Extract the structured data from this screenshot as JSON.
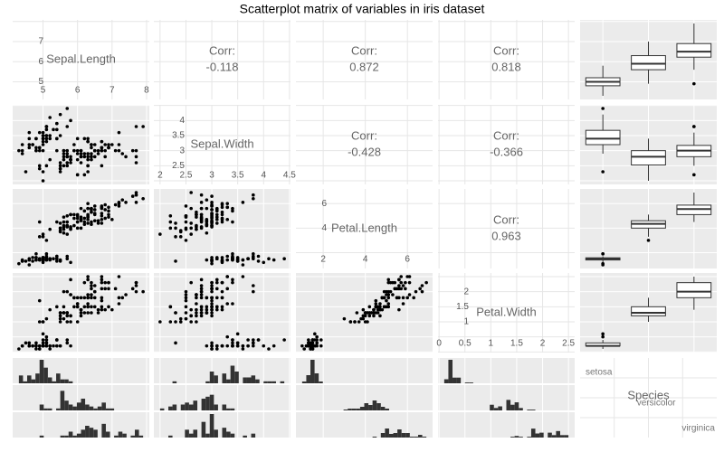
{
  "chart_data": {
    "type": "scatter-matrix",
    "title": "Scatterplot matrix of variables in iris dataset",
    "corr_label": "Corr:",
    "correlations": [
      {
        "pair": [
          0,
          1
        ],
        "value": -0.118
      },
      {
        "pair": [
          0,
          2
        ],
        "value": 0.872
      },
      {
        "pair": [
          0,
          3
        ],
        "value": 0.818
      },
      {
        "pair": [
          1,
          2
        ],
        "value": -0.428
      },
      {
        "pair": [
          1,
          3
        ],
        "value": -0.366
      },
      {
        "pair": [
          2,
          3
        ],
        "value": 0.963
      }
    ],
    "species": {
      "name": "Species",
      "levels": [
        "setosa",
        "versicolor",
        "virginica"
      ]
    },
    "point_color": "#000000",
    "bar_color": "#333333",
    "variables": [
      {
        "name": "Sepal.Length",
        "lim": [
          4.12,
          8.08
        ],
        "ticks": [
          5,
          6,
          7,
          8
        ],
        "series": [
          {
            "values": [
              5.1,
              4.9,
              4.7,
              4.6,
              5.0,
              5.4,
              4.6,
              5.0,
              4.4,
              4.9,
              5.4,
              4.8,
              4.8,
              4.3,
              5.8,
              5.7,
              5.4,
              5.1,
              5.7,
              5.1,
              5.4,
              5.1,
              4.6,
              5.1,
              4.8,
              5.0,
              5.0,
              5.2,
              5.2,
              4.7,
              4.8,
              5.4,
              5.2,
              5.5,
              4.9,
              5.0,
              5.5,
              4.9,
              4.4,
              5.1,
              5.0,
              4.5,
              4.4,
              5.0,
              5.1,
              4.8,
              5.1,
              4.6,
              5.3,
              5.0
            ],
            "box": [
              4.3,
              4.8,
              5.0,
              5.2,
              5.8
            ],
            "outliers": []
          },
          {
            "values": [
              7.0,
              6.4,
              6.9,
              5.5,
              6.5,
              5.7,
              6.3,
              4.9,
              6.6,
              5.2,
              5.0,
              5.9,
              6.0,
              6.1,
              5.6,
              6.7,
              5.6,
              5.8,
              6.2,
              5.6,
              5.9,
              6.1,
              6.3,
              6.1,
              6.4,
              6.6,
              6.8,
              6.7,
              6.0,
              5.7,
              5.5,
              5.5,
              5.8,
              6.0,
              5.4,
              6.0,
              6.7,
              6.3,
              5.6,
              5.5,
              5.5,
              6.1,
              5.8,
              5.0,
              5.6,
              5.7,
              5.7,
              6.2,
              5.1,
              5.7
            ],
            "box": [
              4.9,
              5.6,
              5.9,
              6.3,
              7.0
            ],
            "outliers": []
          },
          {
            "values": [
              6.3,
              5.8,
              7.1,
              6.3,
              6.5,
              7.6,
              4.9,
              7.3,
              6.7,
              7.2,
              6.5,
              6.4,
              6.8,
              5.7,
              5.8,
              6.4,
              6.5,
              7.7,
              7.7,
              6.0,
              6.9,
              5.6,
              7.7,
              6.3,
              6.7,
              7.2,
              6.2,
              6.1,
              6.4,
              7.2,
              7.4,
              7.9,
              6.4,
              6.3,
              6.1,
              7.7,
              6.3,
              6.4,
              6.0,
              6.9,
              6.7,
              6.9,
              5.8,
              6.8,
              6.7,
              6.7,
              6.3,
              6.5,
              6.2,
              5.9
            ],
            "box": [
              5.6,
              6.225,
              6.5,
              6.9,
              7.9
            ],
            "outliers": [
              4.9
            ]
          }
        ]
      },
      {
        "name": "Sepal.Width",
        "lim": [
          1.88,
          4.52
        ],
        "ticks": [
          2,
          2.5,
          3,
          3.5,
          4,
          4.5
        ],
        "series": [
          {
            "values": [
              3.5,
              3.0,
              3.2,
              3.1,
              3.6,
              3.9,
              3.4,
              3.4,
              2.9,
              3.1,
              3.7,
              3.4,
              3.0,
              3.0,
              4.0,
              4.4,
              3.9,
              3.5,
              3.8,
              3.8,
              3.4,
              3.7,
              3.6,
              3.3,
              3.4,
              3.0,
              3.4,
              3.5,
              3.4,
              3.2,
              3.1,
              3.4,
              4.1,
              4.2,
              3.1,
              3.2,
              3.5,
              3.6,
              3.0,
              3.4,
              3.5,
              2.3,
              3.2,
              3.5,
              3.8,
              3.0,
              3.8,
              3.2,
              3.7,
              3.3
            ],
            "box": [
              2.9,
              3.2,
              3.4,
              3.675,
              4.2
            ],
            "outliers": [
              2.3,
              4.4
            ]
          },
          {
            "values": [
              3.2,
              3.2,
              3.1,
              2.3,
              2.8,
              2.8,
              3.3,
              2.4,
              2.9,
              2.7,
              2.0,
              3.0,
              2.2,
              2.9,
              2.9,
              3.1,
              3.0,
              2.7,
              2.2,
              2.5,
              3.2,
              2.8,
              2.5,
              2.8,
              2.9,
              3.0,
              2.8,
              3.0,
              2.9,
              2.6,
              2.4,
              2.4,
              2.7,
              2.7,
              3.0,
              3.4,
              3.1,
              2.3,
              3.0,
              2.5,
              2.6,
              3.0,
              2.6,
              2.3,
              2.7,
              3.0,
              2.9,
              2.9,
              2.5,
              2.8
            ],
            "box": [
              2.0,
              2.525,
              2.8,
              3.0,
              3.4
            ],
            "outliers": []
          },
          {
            "values": [
              3.3,
              2.7,
              3.0,
              2.9,
              3.0,
              3.0,
              2.5,
              2.9,
              2.5,
              3.6,
              3.2,
              2.7,
              3.0,
              2.5,
              2.8,
              3.2,
              3.0,
              3.8,
              2.6,
              2.2,
              3.2,
              2.8,
              2.8,
              2.7,
              3.3,
              3.2,
              2.8,
              3.0,
              2.8,
              3.0,
              2.8,
              3.8,
              2.8,
              2.8,
              2.6,
              3.0,
              3.4,
              3.1,
              3.0,
              3.1,
              3.1,
              3.1,
              2.7,
              3.2,
              3.3,
              3.0,
              2.5,
              3.0,
              3.4,
              3.0
            ],
            "box": [
              2.5,
              2.8,
              3.0,
              3.175,
              3.6
            ],
            "outliers": [
              2.2,
              3.8,
              3.8
            ]
          }
        ]
      },
      {
        "name": "Petal.Length",
        "lim": [
          0.705,
          7.195
        ],
        "ticks": [
          2,
          4,
          6
        ],
        "series": [
          {
            "values": [
              1.4,
              1.4,
              1.3,
              1.5,
              1.4,
              1.7,
              1.4,
              1.5,
              1.4,
              1.5,
              1.5,
              1.6,
              1.4,
              1.1,
              1.2,
              1.5,
              1.3,
              1.4,
              1.7,
              1.5,
              1.7,
              1.5,
              1.0,
              1.7,
              1.9,
              1.6,
              1.6,
              1.5,
              1.4,
              1.6,
              1.6,
              1.5,
              1.5,
              1.4,
              1.5,
              1.2,
              1.3,
              1.4,
              1.3,
              1.5,
              1.3,
              1.3,
              1.3,
              1.6,
              1.9,
              1.4,
              1.6,
              1.4,
              1.5,
              1.4
            ],
            "box": [
              1.2,
              1.4,
              1.5,
              1.575,
              1.7
            ],
            "outliers": [
              1.0,
              1.1,
              1.9,
              1.9
            ]
          },
          {
            "values": [
              4.7,
              4.5,
              4.9,
              4.0,
              4.6,
              4.5,
              4.7,
              3.3,
              4.6,
              3.9,
              3.5,
              4.2,
              4.0,
              4.7,
              3.6,
              4.4,
              4.5,
              4.1,
              4.5,
              3.9,
              4.8,
              4.0,
              4.9,
              4.7,
              4.3,
              4.4,
              4.8,
              5.0,
              4.5,
              3.5,
              3.8,
              3.7,
              3.9,
              5.1,
              4.5,
              4.5,
              4.7,
              4.4,
              4.1,
              4.0,
              4.4,
              4.6,
              4.0,
              3.3,
              4.2,
              4.2,
              4.2,
              4.3,
              3.0,
              4.1
            ],
            "box": [
              3.3,
              4.0,
              4.35,
              4.6,
              5.1
            ],
            "outliers": [
              3.0
            ]
          },
          {
            "values": [
              6.0,
              5.1,
              5.9,
              5.6,
              5.8,
              6.6,
              4.5,
              6.3,
              5.8,
              6.1,
              5.1,
              5.3,
              5.5,
              5.0,
              5.1,
              5.3,
              5.5,
              6.7,
              6.9,
              5.0,
              5.7,
              4.9,
              6.7,
              4.9,
              5.7,
              6.0,
              4.8,
              4.9,
              5.6,
              5.8,
              6.1,
              6.4,
              5.6,
              5.1,
              5.6,
              6.1,
              5.6,
              5.5,
              4.8,
              5.4,
              5.6,
              5.1,
              5.1,
              5.9,
              5.7,
              5.2,
              5.0,
              5.2,
              5.4,
              5.1
            ],
            "box": [
              4.5,
              5.1,
              5.55,
              5.875,
              6.9
            ],
            "outliers": []
          }
        ]
      },
      {
        "name": "Petal.Width",
        "lim": [
          -0.02,
          2.62
        ],
        "ticks": [
          0,
          0.5,
          1,
          1.5,
          2,
          2.5
        ],
        "series": [
          {
            "values": [
              0.2,
              0.2,
              0.2,
              0.2,
              0.2,
              0.4,
              0.3,
              0.2,
              0.2,
              0.1,
              0.2,
              0.2,
              0.1,
              0.1,
              0.2,
              0.4,
              0.4,
              0.3,
              0.3,
              0.3,
              0.2,
              0.4,
              0.2,
              0.5,
              0.2,
              0.2,
              0.4,
              0.2,
              0.2,
              0.2,
              0.2,
              0.4,
              0.1,
              0.2,
              0.2,
              0.2,
              0.2,
              0.1,
              0.2,
              0.2,
              0.3,
              0.3,
              0.2,
              0.6,
              0.4,
              0.3,
              0.2,
              0.2,
              0.2,
              0.2
            ],
            "box": [
              0.1,
              0.2,
              0.2,
              0.3,
              0.4
            ],
            "outliers": [
              0.5,
              0.6
            ]
          },
          {
            "values": [
              1.4,
              1.5,
              1.5,
              1.3,
              1.5,
              1.3,
              1.6,
              1.0,
              1.3,
              1.4,
              1.0,
              1.5,
              1.0,
              1.4,
              1.3,
              1.4,
              1.5,
              1.0,
              1.5,
              1.1,
              1.8,
              1.3,
              1.5,
              1.2,
              1.3,
              1.4,
              1.4,
              1.7,
              1.5,
              1.0,
              1.1,
              1.0,
              1.2,
              1.6,
              1.5,
              1.6,
              1.5,
              1.3,
              1.3,
              1.3,
              1.2,
              1.4,
              1.2,
              1.0,
              1.3,
              1.2,
              1.3,
              1.3,
              1.1,
              1.3
            ],
            "box": [
              1.0,
              1.2,
              1.3,
              1.5,
              1.8
            ],
            "outliers": []
          },
          {
            "values": [
              2.5,
              1.9,
              2.1,
              1.8,
              2.2,
              2.1,
              1.7,
              1.8,
              1.8,
              2.5,
              2.0,
              1.9,
              2.1,
              2.0,
              2.4,
              2.3,
              1.8,
              2.2,
              2.3,
              1.5,
              2.3,
              2.0,
              2.0,
              1.8,
              2.1,
              1.8,
              1.8,
              1.8,
              2.1,
              1.6,
              1.9,
              2.0,
              2.2,
              1.5,
              1.4,
              2.3,
              2.4,
              1.8,
              1.8,
              2.1,
              2.4,
              2.3,
              1.9,
              2.3,
              2.5,
              2.3,
              1.9,
              2.0,
              2.3,
              1.8
            ],
            "box": [
              1.4,
              1.8,
              2.0,
              2.3,
              2.5
            ],
            "outliers": []
          }
        ]
      }
    ]
  }
}
